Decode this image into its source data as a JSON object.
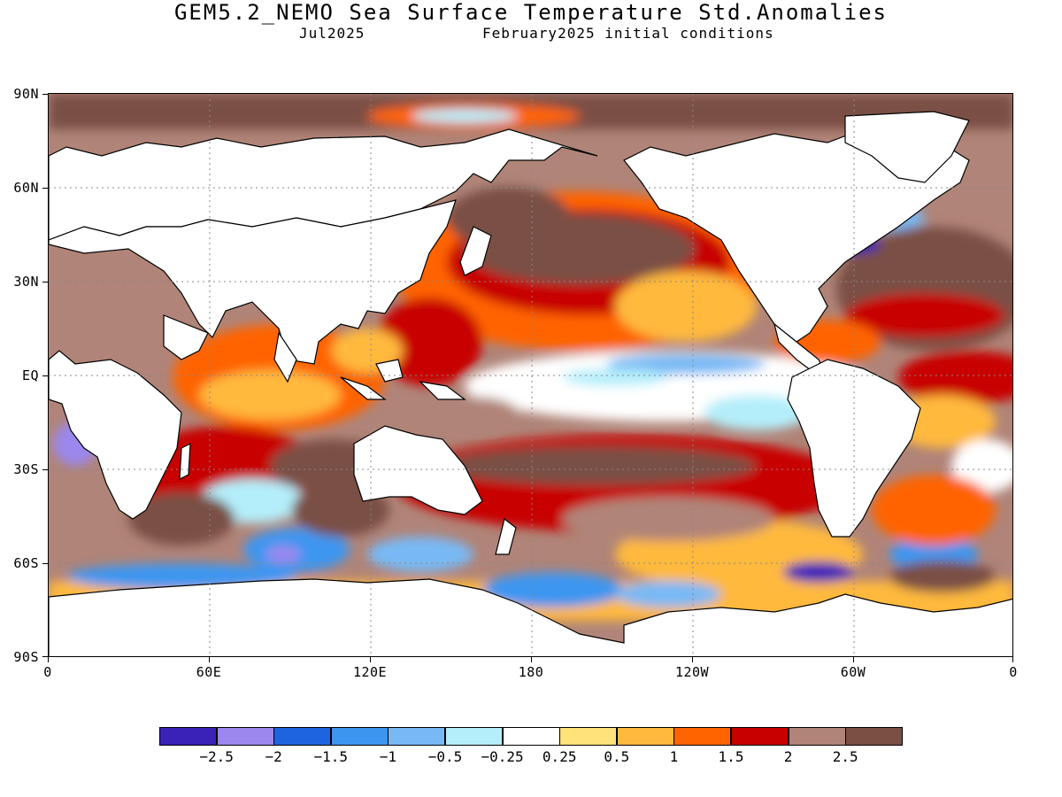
{
  "header": {
    "title": "GEM5.2_NEMO Sea Surface Temperature Std.Anomalies",
    "valid_month": "Jul2025",
    "initial_conditions": "February2025 initial conditions"
  },
  "map": {
    "type": "global-contour-map",
    "variable": "Sea Surface Temperature Std.Anomalies",
    "lon_range": [
      0,
      360
    ],
    "lat_range": [
      -90,
      90
    ],
    "grid": "dotted",
    "lat_labels": [
      "90N",
      "60N",
      "30N",
      "EQ",
      "30S",
      "60S",
      "90S"
    ],
    "lat_values": [
      90,
      60,
      30,
      0,
      -30,
      -60,
      -90
    ],
    "lon_labels": [
      "0",
      "60E",
      "120E",
      "180",
      "120W",
      "60W",
      "0"
    ],
    "lon_values": [
      0,
      60,
      120,
      180,
      240,
      300,
      360
    ]
  },
  "legend": {
    "labels": [
      "−2.5",
      "−2",
      "−1.5",
      "−1",
      "−0.5",
      "−0.25",
      "0.25",
      "0.5",
      "1",
      "1.5",
      "2",
      "2.5"
    ],
    "colors": [
      "#3a22b8",
      "#9b87ee",
      "#1e64e0",
      "#3c96f0",
      "#78b9f5",
      "#b4eefa",
      "#ffffff",
      "#ffe27a",
      "#ffb93c",
      "#ff6400",
      "#c80000",
      "#b08478",
      "#7a4f44"
    ]
  }
}
